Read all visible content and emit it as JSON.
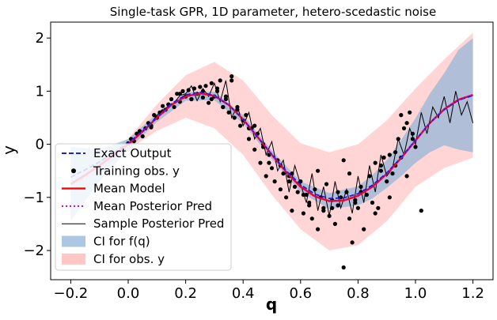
{
  "chart_data": {
    "type": "line",
    "title": "Single-task GPR, 1D parameter, hetero-scedastic noise",
    "xlabel": "q",
    "ylabel": "y",
    "xlim": [
      -0.27,
      1.27
    ],
    "ylim": [
      -2.55,
      2.3
    ],
    "xticks": [
      "−0.2",
      "0.0",
      "0.2",
      "0.4",
      "0.6",
      "0.8",
      "1.0",
      "1.2"
    ],
    "xtick_values": [
      -0.2,
      0.0,
      0.2,
      0.4,
      0.6,
      0.8,
      1.0,
      1.2
    ],
    "yticks": [
      "−2",
      "−1",
      "0",
      "1",
      "2"
    ],
    "ytick_values": [
      -2,
      -1,
      0,
      1,
      2
    ],
    "grid": false,
    "legend_position": "lower-left",
    "colors": {
      "exact": "#1f1fd6",
      "mean": "#ff0000",
      "posterior": "#cc00cc",
      "sample": "#000000",
      "ci_f": "#8fb4d9",
      "ci_y": "#ffb3b3",
      "points": "#000000"
    },
    "series": [
      {
        "name": "Exact Output",
        "style": "dashed",
        "x": [
          -0.2,
          -0.15,
          -0.1,
          -0.05,
          0.0,
          0.05,
          0.1,
          0.15,
          0.2,
          0.25,
          0.3,
          0.35,
          0.4,
          0.45,
          0.5,
          0.55,
          0.6,
          0.65,
          0.7,
          0.75,
          0.8,
          0.85,
          0.9,
          0.95,
          1.0,
          1.05,
          1.1,
          1.15,
          1.2
        ],
        "y": [
          -0.62,
          -0.48,
          -0.33,
          -0.16,
          0.02,
          0.25,
          0.51,
          0.76,
          0.93,
          0.98,
          0.92,
          0.74,
          0.47,
          0.14,
          -0.19,
          -0.5,
          -0.76,
          -0.94,
          -1.02,
          -1.01,
          -0.93,
          -0.77,
          -0.54,
          -0.25,
          0.08,
          0.4,
          0.65,
          0.83,
          0.92
        ]
      },
      {
        "name": "Mean Model",
        "style": "solid",
        "x": [
          -0.2,
          -0.15,
          -0.1,
          -0.05,
          0.0,
          0.05,
          0.1,
          0.15,
          0.2,
          0.25,
          0.3,
          0.35,
          0.4,
          0.45,
          0.5,
          0.55,
          0.6,
          0.65,
          0.7,
          0.75,
          0.8,
          0.85,
          0.9,
          0.95,
          1.0,
          1.05,
          1.1,
          1.15,
          1.2
        ],
        "y": [
          -0.75,
          -0.58,
          -0.4,
          -0.2,
          0.0,
          0.24,
          0.5,
          0.74,
          0.9,
          0.96,
          0.91,
          0.74,
          0.47,
          0.14,
          -0.2,
          -0.52,
          -0.8,
          -0.98,
          -1.07,
          -1.06,
          -0.97,
          -0.8,
          -0.56,
          -0.26,
          0.07,
          0.4,
          0.66,
          0.84,
          0.93
        ]
      },
      {
        "name": "Mean Posterior Pred",
        "style": "dotted",
        "x": [
          -0.2,
          -0.15,
          -0.1,
          -0.05,
          0.0,
          0.05,
          0.1,
          0.15,
          0.2,
          0.25,
          0.3,
          0.35,
          0.4,
          0.45,
          0.5,
          0.55,
          0.6,
          0.65,
          0.7,
          0.75,
          0.8,
          0.85,
          0.9,
          0.95,
          1.0,
          1.05,
          1.1,
          1.15,
          1.2
        ],
        "y": [
          -0.75,
          -0.58,
          -0.4,
          -0.2,
          0.0,
          0.24,
          0.5,
          0.74,
          0.9,
          0.96,
          0.91,
          0.74,
          0.47,
          0.14,
          -0.2,
          -0.52,
          -0.8,
          -0.98,
          -1.07,
          -1.06,
          -0.97,
          -0.8,
          -0.56,
          -0.26,
          0.07,
          0.4,
          0.66,
          0.84,
          0.93
        ]
      },
      {
        "name": "Sample Posterior Pred",
        "style": "solid-thin",
        "x": [
          0.0,
          0.02,
          0.04,
          0.06,
          0.08,
          0.1,
          0.12,
          0.14,
          0.16,
          0.18,
          0.2,
          0.22,
          0.24,
          0.26,
          0.28,
          0.3,
          0.32,
          0.34,
          0.36,
          0.38,
          0.4,
          0.42,
          0.44,
          0.46,
          0.48,
          0.5,
          0.52,
          0.54,
          0.56,
          0.58,
          0.6,
          0.62,
          0.64,
          0.66,
          0.68,
          0.7,
          0.72,
          0.74,
          0.76,
          0.78,
          0.8,
          0.82,
          0.84,
          0.86,
          0.88,
          0.9,
          0.92,
          0.94,
          0.96,
          0.98,
          1.0,
          1.02,
          1.04,
          1.06,
          1.08,
          1.1,
          1.12,
          1.14,
          1.16,
          1.18,
          1.2
        ],
        "y": [
          0.02,
          0.1,
          0.18,
          0.3,
          0.4,
          0.55,
          0.62,
          0.72,
          0.78,
          0.92,
          0.95,
          1.1,
          0.82,
          1.05,
          0.9,
          1.15,
          0.8,
          1.2,
          0.5,
          0.72,
          0.35,
          0.6,
          0.1,
          0.3,
          -0.2,
          0.05,
          -0.5,
          -0.3,
          -0.9,
          -0.4,
          -0.75,
          -1.1,
          -0.55,
          -1.25,
          -0.8,
          -1.35,
          -0.7,
          -1.2,
          -0.85,
          -1.3,
          -0.6,
          -1.1,
          -0.4,
          -0.9,
          -0.2,
          -0.6,
          -0.45,
          0.1,
          -0.2,
          0.3,
          0.0,
          0.6,
          0.2,
          0.7,
          0.5,
          0.9,
          0.4,
          1.0,
          0.55,
          0.8,
          0.4
        ]
      }
    ],
    "bands": [
      {
        "name": "CI for f(q)",
        "x": [
          -0.2,
          -0.1,
          0.0,
          0.1,
          0.2,
          0.3,
          0.4,
          0.5,
          0.6,
          0.7,
          0.8,
          0.85,
          0.9,
          0.95,
          1.0,
          1.05,
          1.1,
          1.15,
          1.2
        ],
        "lower": [
          -1.45,
          -0.7,
          -0.1,
          0.42,
          0.82,
          0.83,
          0.39,
          -0.28,
          -0.9,
          -1.22,
          -1.15,
          -1.02,
          -0.82,
          -0.6,
          -0.35,
          -0.15,
          -0.02,
          -0.1,
          -0.15
        ],
        "upper": [
          -0.05,
          -0.1,
          0.1,
          0.58,
          0.98,
          0.99,
          0.55,
          -0.12,
          -0.7,
          -0.92,
          -0.79,
          -0.58,
          -0.3,
          0.08,
          0.49,
          0.95,
          1.34,
          1.78,
          2.0
        ]
      },
      {
        "name": "CI for obs. y",
        "x": [
          -0.2,
          -0.1,
          0.0,
          0.1,
          0.2,
          0.3,
          0.4,
          0.5,
          0.6,
          0.7,
          0.8,
          0.9,
          1.0,
          1.1,
          1.2
        ],
        "lower": [
          -0.8,
          -0.5,
          -0.1,
          0.25,
          0.5,
          0.3,
          -0.2,
          -0.95,
          -1.6,
          -2.0,
          -1.9,
          -1.45,
          -0.8,
          -0.45,
          -0.25
        ],
        "upper": [
          -0.7,
          -0.3,
          0.1,
          0.75,
          1.3,
          1.55,
          1.2,
          0.55,
          0.02,
          -0.15,
          0.0,
          0.45,
          1.05,
          1.6,
          2.1
        ]
      }
    ],
    "training_points": {
      "name": "Training obs. y",
      "x": [
        0.0,
        0.01,
        0.02,
        0.03,
        0.04,
        0.05,
        0.06,
        0.07,
        0.08,
        0.09,
        0.1,
        0.11,
        0.12,
        0.13,
        0.14,
        0.15,
        0.16,
        0.17,
        0.18,
        0.19,
        0.2,
        0.21,
        0.22,
        0.23,
        0.24,
        0.25,
        0.26,
        0.27,
        0.28,
        0.29,
        0.3,
        0.31,
        0.32,
        0.33,
        0.34,
        0.35,
        0.36,
        0.37,
        0.38,
        0.39,
        0.4,
        0.41,
        0.42,
        0.43,
        0.44,
        0.45,
        0.46,
        0.47,
        0.48,
        0.49,
        0.5,
        0.51,
        0.52,
        0.53,
        0.54,
        0.55,
        0.56,
        0.57,
        0.58,
        0.59,
        0.6,
        0.61,
        0.62,
        0.63,
        0.64,
        0.65,
        0.66,
        0.67,
        0.68,
        0.69,
        0.7,
        0.71,
        0.72,
        0.73,
        0.74,
        0.75,
        0.76,
        0.77,
        0.78,
        0.79,
        0.8,
        0.81,
        0.82,
        0.83,
        0.84,
        0.85,
        0.86,
        0.87,
        0.88,
        0.89,
        0.9,
        0.91,
        0.92,
        0.93,
        0.94,
        0.95,
        0.96,
        0.97,
        0.98,
        0.99,
        1.0,
        0.22,
        0.26,
        0.31,
        0.36,
        0.42,
        0.47,
        0.53,
        0.56,
        0.61,
        0.66,
        0.71,
        0.75,
        0.79,
        0.83,
        0.88,
        0.93,
        0.97,
        1.02,
        0.14,
        0.18,
        0.33,
        0.38,
        0.44,
        0.49,
        0.57,
        0.63,
        0.68,
        0.73,
        0.77,
        0.81,
        0.86,
        0.91,
        0.95,
        0.99,
        0.03,
        0.08,
        0.12,
        0.29,
        0.34
      ],
      "y": [
        0.02,
        0.1,
        0.06,
        0.2,
        0.25,
        0.15,
        0.3,
        0.4,
        0.35,
        0.55,
        0.5,
        0.6,
        0.72,
        0.65,
        0.75,
        0.85,
        0.7,
        0.95,
        0.8,
        1.0,
        0.9,
        1.02,
        0.85,
        1.05,
        0.95,
        1.08,
        0.88,
        1.1,
        0.78,
        1.15,
        0.9,
        1.0,
        1.2,
        0.7,
        0.85,
        0.6,
        1.28,
        0.5,
        0.7,
        0.35,
        0.45,
        0.55,
        0.1,
        0.3,
        -0.1,
        0.2,
        -0.35,
        -0.05,
        -0.6,
        -0.2,
        -0.45,
        -0.7,
        -0.3,
        -0.85,
        -0.55,
        -1.0,
        -0.6,
        -1.25,
        -0.8,
        -0.9,
        -0.7,
        -1.3,
        -0.95,
        -1.1,
        -1.4,
        -0.85,
        -1.6,
        -1.0,
        -1.2,
        -0.75,
        -1.35,
        -1.05,
        -1.5,
        -1.15,
        -1.0,
        -2.32,
        -0.9,
        -1.4,
        -1.85,
        -1.1,
        -1.2,
        -0.8,
        -1.6,
        -0.95,
        -0.6,
        -1.1,
        -0.35,
        -1.2,
        -0.5,
        -0.25,
        -0.7,
        -0.2,
        -0.55,
        -0.4,
        0.1,
        -0.25,
        0.3,
        -0.6,
        0.6,
        0.2,
        -0.05,
        0.85,
        1.0,
        1.05,
        1.2,
        0.3,
        0.0,
        -0.4,
        -0.7,
        -0.95,
        -0.5,
        -1.2,
        -0.3,
        -1.05,
        -0.95,
        -0.4,
        -0.15,
        0.4,
        -1.25,
        0.75,
        0.95,
        0.7,
        0.65,
        0.35,
        -0.35,
        -0.55,
        -1.15,
        -1.25,
        -0.9,
        -0.55,
        -0.9,
        -1.3,
        -1.0,
        0.55,
        0.1,
        0.2,
        0.32,
        0.62,
        0.85,
        0.9
      ]
    },
    "legend": [
      {
        "label": "Exact Output",
        "kind": "dashed",
        "color": "#1f1fd6"
      },
      {
        "label": "Training obs. y",
        "kind": "dot",
        "color": "#000000"
      },
      {
        "label": "Mean Model",
        "kind": "solid",
        "color": "#ff0000"
      },
      {
        "label": "Mean Posterior Pred",
        "kind": "dotted",
        "color": "#cc00cc"
      },
      {
        "label": "Sample Posterior Pred",
        "kind": "thin",
        "color": "#000000"
      },
      {
        "label": "CI for f(q)",
        "kind": "patch",
        "color": "#8fb4d9"
      },
      {
        "label": "CI for obs. y",
        "kind": "patch",
        "color": "#ffb3b3"
      }
    ]
  }
}
